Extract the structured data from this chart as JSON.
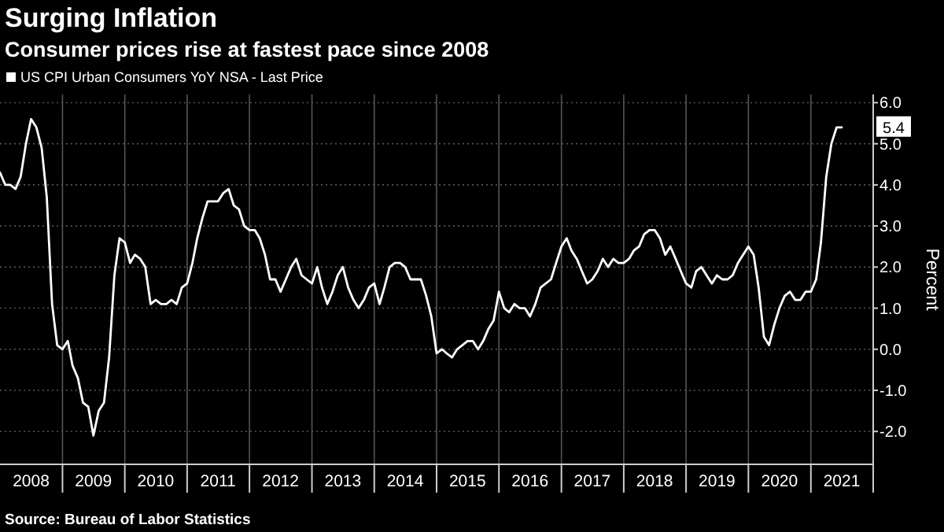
{
  "chart_data": {
    "type": "line",
    "title": "Surging Inflation",
    "subtitle": "Consumer prices rise at fastest pace since 2008",
    "ylabel": "Percent",
    "x": [
      "2008-01",
      "2008-02",
      "2008-03",
      "2008-04",
      "2008-05",
      "2008-06",
      "2008-07",
      "2008-08",
      "2008-09",
      "2008-10",
      "2008-11",
      "2008-12",
      "2009-01",
      "2009-02",
      "2009-03",
      "2009-04",
      "2009-05",
      "2009-06",
      "2009-07",
      "2009-08",
      "2009-09",
      "2009-10",
      "2009-11",
      "2009-12",
      "2010-01",
      "2010-02",
      "2010-03",
      "2010-04",
      "2010-05",
      "2010-06",
      "2010-07",
      "2010-08",
      "2010-09",
      "2010-10",
      "2010-11",
      "2010-12",
      "2011-01",
      "2011-02",
      "2011-03",
      "2011-04",
      "2011-05",
      "2011-06",
      "2011-07",
      "2011-08",
      "2011-09",
      "2011-10",
      "2011-11",
      "2011-12",
      "2012-01",
      "2012-02",
      "2012-03",
      "2012-04",
      "2012-05",
      "2012-06",
      "2012-07",
      "2012-08",
      "2012-09",
      "2012-10",
      "2012-11",
      "2012-12",
      "2013-01",
      "2013-02",
      "2013-03",
      "2013-04",
      "2013-05",
      "2013-06",
      "2013-07",
      "2013-08",
      "2013-09",
      "2013-10",
      "2013-11",
      "2013-12",
      "2014-01",
      "2014-02",
      "2014-03",
      "2014-04",
      "2014-05",
      "2014-06",
      "2014-07",
      "2014-08",
      "2014-09",
      "2014-10",
      "2014-11",
      "2014-12",
      "2015-01",
      "2015-02",
      "2015-03",
      "2015-04",
      "2015-05",
      "2015-06",
      "2015-07",
      "2015-08",
      "2015-09",
      "2015-10",
      "2015-11",
      "2015-12",
      "2016-01",
      "2016-02",
      "2016-03",
      "2016-04",
      "2016-05",
      "2016-06",
      "2016-07",
      "2016-08",
      "2016-09",
      "2016-10",
      "2016-11",
      "2016-12",
      "2017-01",
      "2017-02",
      "2017-03",
      "2017-04",
      "2017-05",
      "2017-06",
      "2017-07",
      "2017-08",
      "2017-09",
      "2017-10",
      "2017-11",
      "2017-12",
      "2018-01",
      "2018-02",
      "2018-03",
      "2018-04",
      "2018-05",
      "2018-06",
      "2018-07",
      "2018-08",
      "2018-09",
      "2018-10",
      "2018-11",
      "2018-12",
      "2019-01",
      "2019-02",
      "2019-03",
      "2019-04",
      "2019-05",
      "2019-06",
      "2019-07",
      "2019-08",
      "2019-09",
      "2019-10",
      "2019-11",
      "2019-12",
      "2020-01",
      "2020-02",
      "2020-03",
      "2020-04",
      "2020-05",
      "2020-06",
      "2020-07",
      "2020-08",
      "2020-09",
      "2020-10",
      "2020-11",
      "2020-12",
      "2021-01",
      "2021-02",
      "2021-03",
      "2021-04",
      "2021-05",
      "2021-06",
      "2021-07"
    ],
    "series": [
      {
        "name": "US CPI Urban Consumers YoY NSA - Last Price",
        "color": "#ffffff",
        "values": [
          4.3,
          4.0,
          4.0,
          3.9,
          4.2,
          5.0,
          5.6,
          5.4,
          4.9,
          3.7,
          1.1,
          0.1,
          0.0,
          0.2,
          -0.4,
          -0.7,
          -1.3,
          -1.4,
          -2.1,
          -1.5,
          -1.3,
          -0.2,
          1.8,
          2.7,
          2.6,
          2.1,
          2.3,
          2.2,
          2.0,
          1.1,
          1.2,
          1.1,
          1.1,
          1.2,
          1.1,
          1.5,
          1.6,
          2.1,
          2.7,
          3.2,
          3.6,
          3.6,
          3.6,
          3.8,
          3.9,
          3.5,
          3.4,
          3.0,
          2.9,
          2.9,
          2.7,
          2.3,
          1.7,
          1.7,
          1.4,
          1.7,
          2.0,
          2.2,
          1.8,
          1.7,
          1.6,
          2.0,
          1.5,
          1.1,
          1.4,
          1.8,
          2.0,
          1.5,
          1.2,
          1.0,
          1.2,
          1.5,
          1.6,
          1.1,
          1.5,
          2.0,
          2.1,
          2.1,
          2.0,
          1.7,
          1.7,
          1.7,
          1.3,
          0.8,
          -0.1,
          0.0,
          -0.1,
          -0.2,
          0.0,
          0.1,
          0.2,
          0.2,
          0.0,
          0.2,
          0.5,
          0.7,
          1.4,
          1.0,
          0.9,
          1.1,
          1.0,
          1.0,
          0.8,
          1.1,
          1.5,
          1.6,
          1.7,
          2.1,
          2.5,
          2.7,
          2.4,
          2.2,
          1.9,
          1.6,
          1.7,
          1.9,
          2.2,
          2.0,
          2.2,
          2.1,
          2.1,
          2.2,
          2.4,
          2.5,
          2.8,
          2.9,
          2.9,
          2.7,
          2.3,
          2.5,
          2.2,
          1.9,
          1.6,
          1.5,
          1.9,
          2.0,
          1.8,
          1.6,
          1.8,
          1.7,
          1.7,
          1.8,
          2.1,
          2.3,
          2.5,
          2.3,
          1.5,
          0.3,
          0.1,
          0.6,
          1.0,
          1.3,
          1.4,
          1.2,
          1.2,
          1.4,
          1.4,
          1.7,
          2.6,
          4.2,
          5.0,
          5.4,
          5.4
        ]
      }
    ],
    "xlim": [
      "2008-01",
      "2022-01"
    ],
    "xticks": [
      {
        "value": "2008-07",
        "label": "2008"
      },
      {
        "value": "2009-01",
        "label": null
      },
      {
        "value": "2009-07",
        "label": "2009"
      },
      {
        "value": "2010-01",
        "label": null
      },
      {
        "value": "2010-07",
        "label": "2010"
      },
      {
        "value": "2011-01",
        "label": null
      },
      {
        "value": "2011-07",
        "label": "2011"
      },
      {
        "value": "2012-01",
        "label": null
      },
      {
        "value": "2012-07",
        "label": "2012"
      },
      {
        "value": "2013-01",
        "label": null
      },
      {
        "value": "2013-07",
        "label": "2013"
      },
      {
        "value": "2014-01",
        "label": null
      },
      {
        "value": "2014-07",
        "label": "2014"
      },
      {
        "value": "2015-01",
        "label": null
      },
      {
        "value": "2015-07",
        "label": "2015"
      },
      {
        "value": "2016-01",
        "label": null
      },
      {
        "value": "2016-07",
        "label": "2016"
      },
      {
        "value": "2017-01",
        "label": null
      },
      {
        "value": "2017-07",
        "label": "2017"
      },
      {
        "value": "2018-01",
        "label": null
      },
      {
        "value": "2018-07",
        "label": "2018"
      },
      {
        "value": "2019-01",
        "label": null
      },
      {
        "value": "2019-07",
        "label": "2019"
      },
      {
        "value": "2020-01",
        "label": null
      },
      {
        "value": "2020-07",
        "label": "2020"
      },
      {
        "value": "2021-01",
        "label": null
      },
      {
        "value": "2021-07",
        "label": "2021"
      }
    ],
    "ylim": [
      -2.8,
      6.2
    ],
    "yticks": [
      {
        "value": -2,
        "label": "-2.0"
      },
      {
        "value": -1,
        "label": "-1.0"
      },
      {
        "value": 0,
        "label": "0.0"
      },
      {
        "value": 1,
        "label": "1.0"
      },
      {
        "value": 2,
        "label": "2.0"
      },
      {
        "value": 3,
        "label": "3.0"
      },
      {
        "value": 4,
        "label": "4.0"
      },
      {
        "value": 5,
        "label": "5.0"
      },
      {
        "value": 6,
        "label": "6.0"
      }
    ],
    "grid": true,
    "legend": "top left",
    "annotations": [
      {
        "text": "5.4",
        "x": "2021-07",
        "y": 5.4
      },
      "Source: Bureau of Labor Statistics"
    ]
  }
}
